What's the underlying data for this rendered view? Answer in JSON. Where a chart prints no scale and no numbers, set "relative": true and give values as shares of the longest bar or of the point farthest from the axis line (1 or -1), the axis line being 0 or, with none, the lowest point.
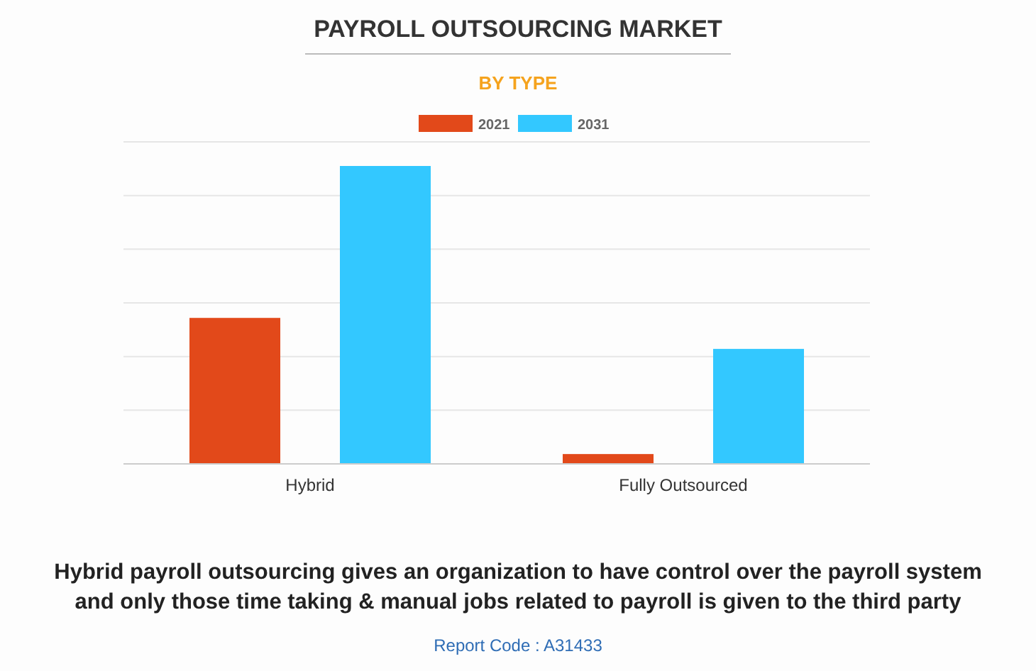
{
  "chart_data": {
    "type": "bar",
    "title": "PAYROLL OUTSOURCING MARKET",
    "subtitle": "BY TYPE",
    "categories": [
      "Hybrid",
      "Fully Outsourced"
    ],
    "series": [
      {
        "name": "2021",
        "color": "#e2491a",
        "values": [
          0.49,
          0.033
        ]
      },
      {
        "name": "2031",
        "color": "#33c8ff",
        "values": [
          1,
          0.386
        ]
      }
    ],
    "relative": true,
    "grid": "y",
    "legend": "top",
    "annotations": [
      "Hybrid payroll outsourcing gives an organization to have control over the payroll system and only those time taking & manual jobs related to payroll is given to the third party",
      "Report Code : A31433"
    ]
  }
}
